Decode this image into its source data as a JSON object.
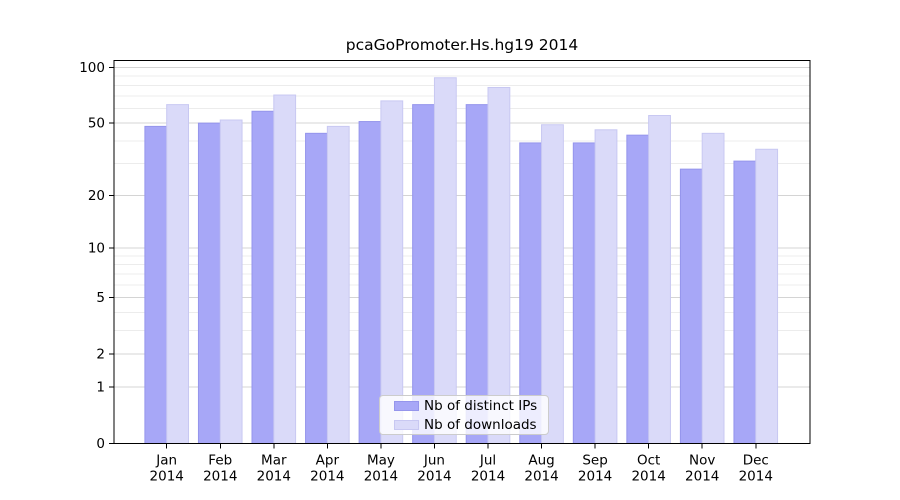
{
  "chart_data": {
    "type": "bar",
    "title": "pcaGoPromoter.Hs.hg19 2014",
    "categories": [
      "Jan",
      "Feb",
      "Mar",
      "Apr",
      "May",
      "Jun",
      "Jul",
      "Aug",
      "Sep",
      "Oct",
      "Nov",
      "Dec"
    ],
    "category_year": "2014",
    "series": [
      {
        "name": "Nb of distinct IPs",
        "color": "#a7a7f7",
        "edge_color": "#9595ec",
        "values": [
          48,
          50,
          58,
          44,
          51,
          63,
          63,
          39,
          39,
          43,
          28,
          31
        ]
      },
      {
        "name": "Nb of downloads",
        "color": "#dadaf9",
        "edge_color": "#c8c8f2",
        "values": [
          63,
          52,
          71,
          48,
          66,
          88,
          78,
          49,
          46,
          55,
          44,
          36
        ]
      }
    ],
    "y_axis": {
      "scale": "log1p",
      "tick_labels": [
        0,
        1,
        2,
        5,
        10,
        20,
        50,
        100
      ],
      "minor_gridlines": [
        3,
        4,
        6,
        7,
        8,
        9,
        30,
        40,
        60,
        70,
        80,
        90
      ],
      "range": [
        0,
        109
      ]
    },
    "grid": true,
    "legend_position": "bottom-center"
  },
  "colors": {
    "major_grid": "#d4d4d4",
    "minor_grid": "#ececec",
    "axis": "#000000",
    "text": "#000000",
    "legend_border": "#cccccc"
  }
}
